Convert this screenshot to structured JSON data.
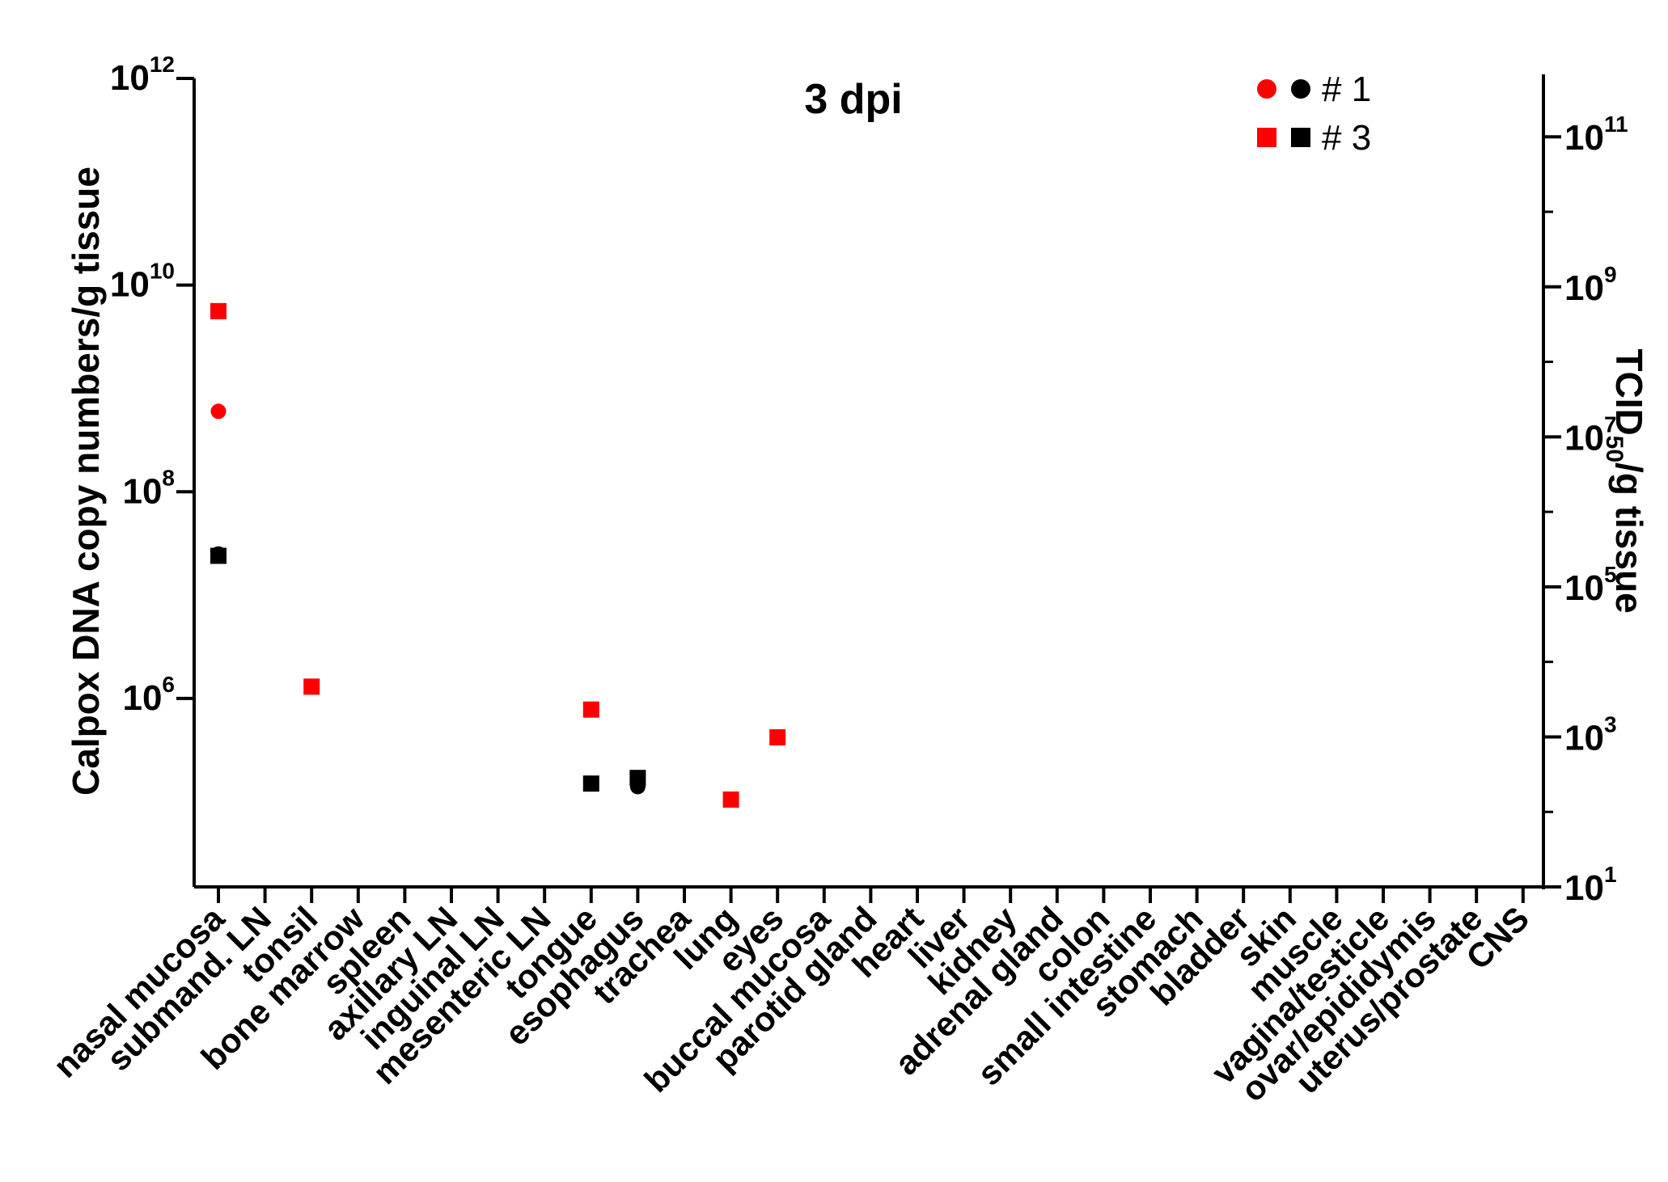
{
  "chart_data": {
    "type": "scatter",
    "title": "3 dpi",
    "categories": [
      "nasal mucosa",
      "submand. LN",
      "tonsil",
      "bone marrow",
      "spleen",
      "axillary LN",
      "inguinal LN",
      "mesenteric LN",
      "tongue",
      "esophagus",
      "trachea",
      "lung",
      "eyes",
      "buccal mucosa",
      "parotid gland",
      "heart",
      "liver",
      "kidney",
      "adrenal gland",
      "colon",
      "small intestine",
      "stomach",
      "bladder",
      "skin",
      "muscle",
      "vagina/testicle",
      "ovar/epididymis",
      "uterus/prostate",
      "CNS"
    ],
    "ylabel": "Calpox DNA copy numbers/g tissue",
    "y2label_main": "TCID",
    "y2label_sub": "50",
    "y2label_rest": "/g tissue",
    "yscale": "log",
    "ylim": [
      15000,
      1000000000000
    ],
    "y2lim": [
      10,
      600000000000
    ],
    "yticks": [
      {
        "base": "10",
        "exp": "6",
        "value": 1000000
      },
      {
        "base": "10",
        "exp": "8",
        "value": 100000000
      },
      {
        "base": "10",
        "exp": "10",
        "value": 10000000000
      },
      {
        "base": "10",
        "exp": "12",
        "value": 1000000000000
      }
    ],
    "y2ticks": [
      {
        "base": "10",
        "exp": "1",
        "value": 10
      },
      {
        "base": "10",
        "exp": "3",
        "value": 1000
      },
      {
        "base": "10",
        "exp": "5",
        "value": 100000
      },
      {
        "base": "10",
        "exp": "7",
        "value": 10000000
      },
      {
        "base": "10",
        "exp": "9",
        "value": 1000000000
      },
      {
        "base": "10",
        "exp": "11",
        "value": 100000000000
      }
    ],
    "series": [
      {
        "name": "# 1 DNA",
        "marker": "circle",
        "color": "#ff0000",
        "axis": "left",
        "points": [
          {
            "category": "nasal mucosa",
            "value": 600000000
          }
        ]
      },
      {
        "name": "# 1 TCID50",
        "marker": "circle",
        "color": "#000000",
        "axis": "left",
        "points": [
          {
            "category": "nasal mucosa",
            "value": 25000000
          },
          {
            "category": "esophagus",
            "value": 140000
          }
        ]
      },
      {
        "name": "# 3 DNA",
        "marker": "square",
        "color": "#ff0000",
        "axis": "left",
        "points": [
          {
            "category": "nasal mucosa",
            "value": 5600000000
          },
          {
            "category": "tonsil",
            "value": 1300000
          },
          {
            "category": "tongue",
            "value": 780000
          },
          {
            "category": "lung",
            "value": 105000
          },
          {
            "category": "eyes",
            "value": 420000
          }
        ]
      },
      {
        "name": "# 3 TCID50",
        "marker": "square",
        "color": "#000000",
        "axis": "left",
        "points": [
          {
            "category": "nasal mucosa",
            "value": 24000000
          },
          {
            "category": "tongue",
            "value": 150000
          },
          {
            "category": "esophagus",
            "value": 170000
          }
        ]
      }
    ],
    "legend": {
      "position": "top-right",
      "entries": [
        {
          "label": "# 1",
          "marker": "circle",
          "colors": [
            "#ff0000",
            "#000000"
          ]
        },
        {
          "label": "# 3",
          "marker": "square",
          "colors": [
            "#ff0000",
            "#000000"
          ]
        }
      ]
    }
  }
}
